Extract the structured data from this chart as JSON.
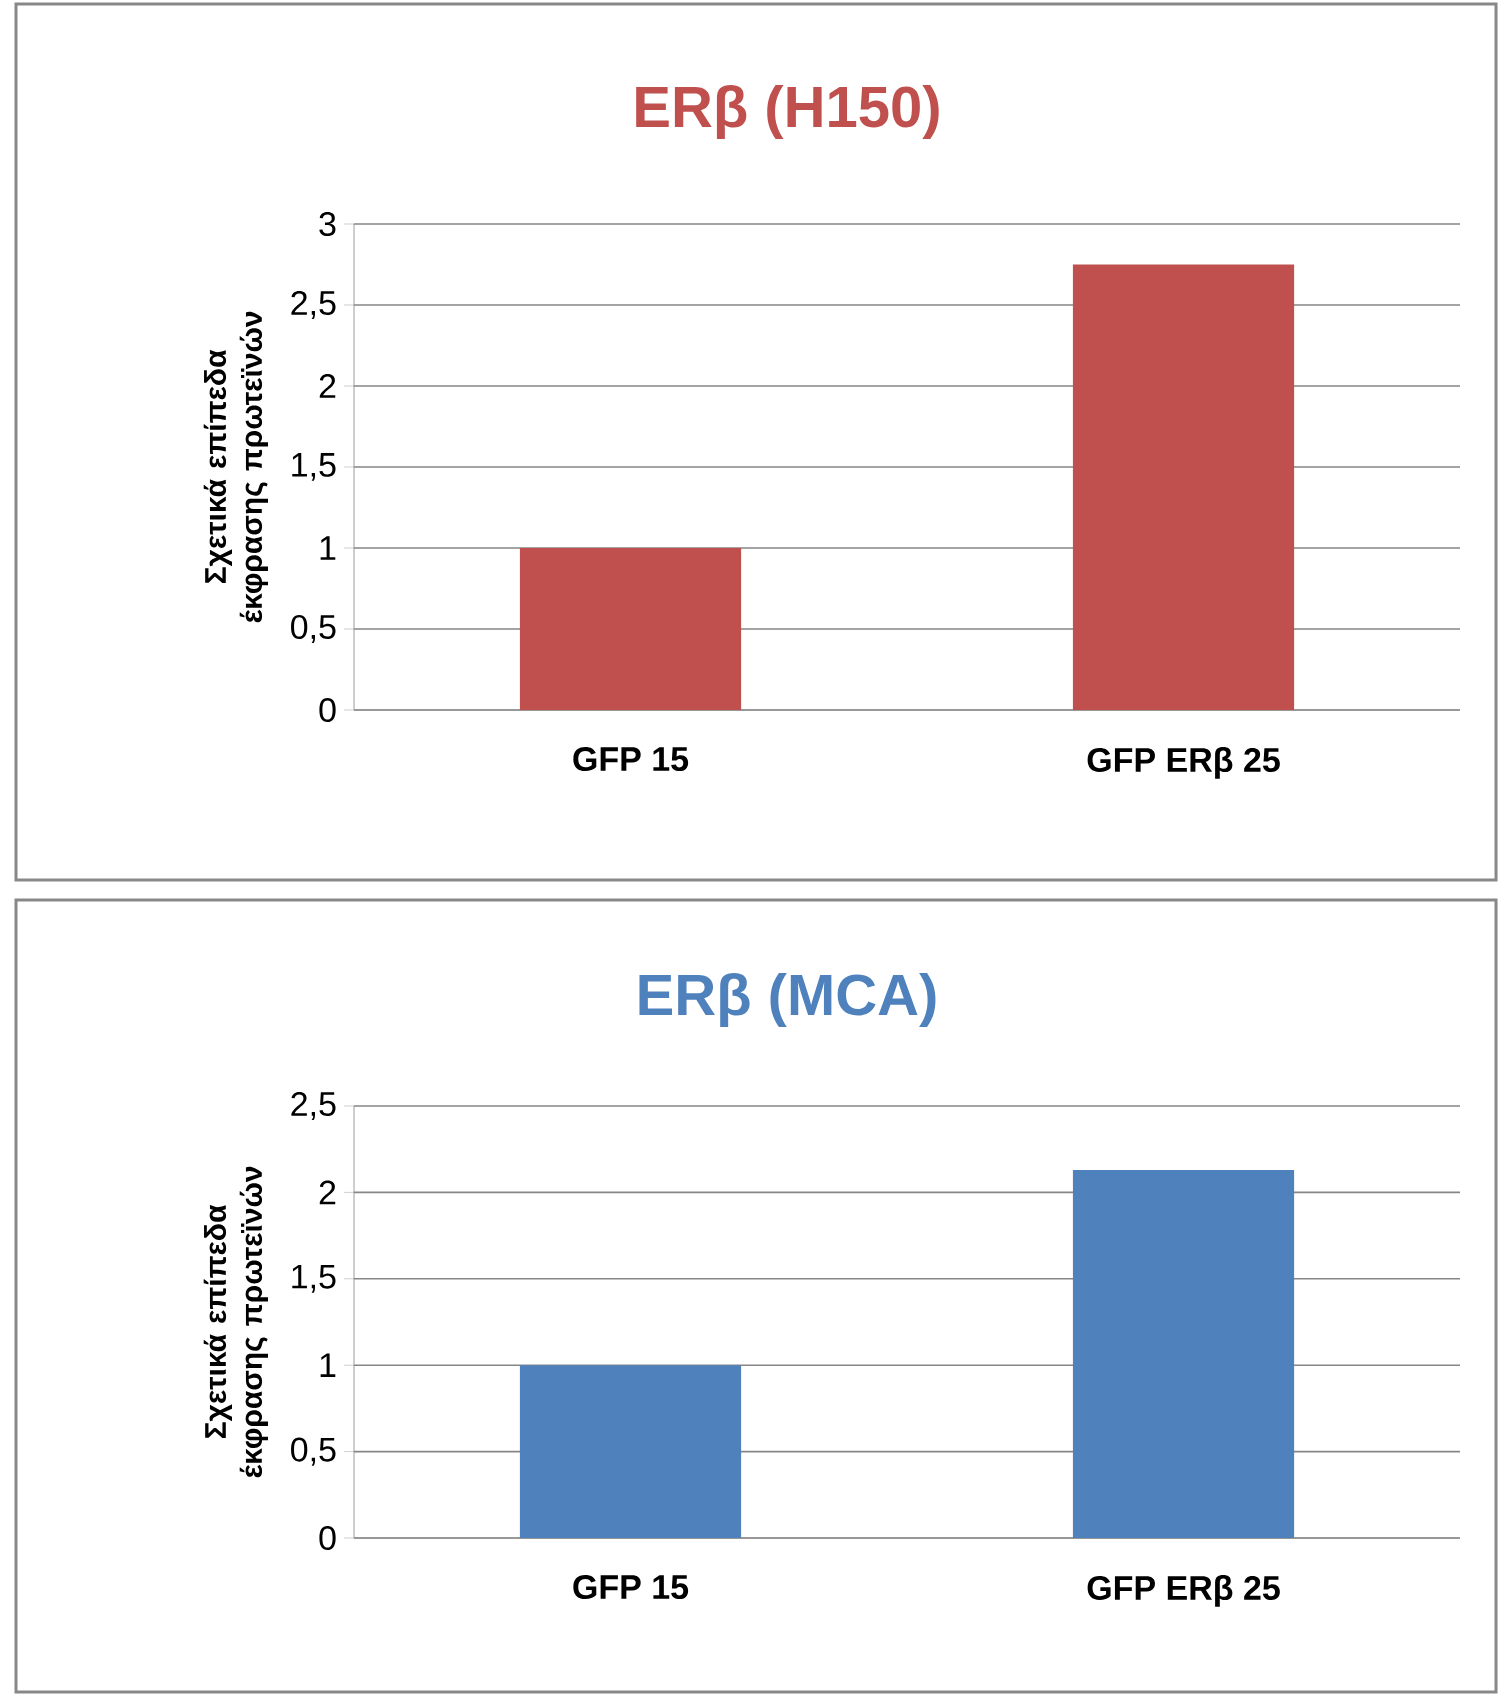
{
  "chart_data": [
    {
      "type": "bar",
      "title": "ERβ (H150)",
      "ylabel": "Σχετικά επίπεδα έκφρασης πρωτεϊνών",
      "categories": [
        "GFP 15",
        "GFP ERβ 25"
      ],
      "values": [
        1,
        2.75
      ],
      "color": "#c0504d",
      "ylim": [
        0,
        3
      ],
      "yticks": [
        0,
        {
          "value": 0.5,
          "label": "0,5"
        },
        1,
        {
          "value": 1.5,
          "label": "1,5"
        },
        2,
        {
          "value": 2.5,
          "label": "2,5"
        },
        3
      ],
      "grid": "y"
    },
    {
      "type": "bar",
      "title": "ERβ (MCA)",
      "ylabel": "Σχετικά επίπεδα έκφρασης πρωτεϊνών",
      "categories": [
        "GFP 15",
        "GFP ERβ 25"
      ],
      "values": [
        1,
        2.13
      ],
      "color": "#4f81bd",
      "ylim": [
        0,
        2.5
      ],
      "yticks": [
        0,
        {
          "value": 0.5,
          "label": "0,5"
        },
        1,
        {
          "value": 1.5,
          "label": "1,5"
        },
        2,
        {
          "value": 2.5,
          "label": "2,5"
        }
      ],
      "grid": "y"
    }
  ]
}
